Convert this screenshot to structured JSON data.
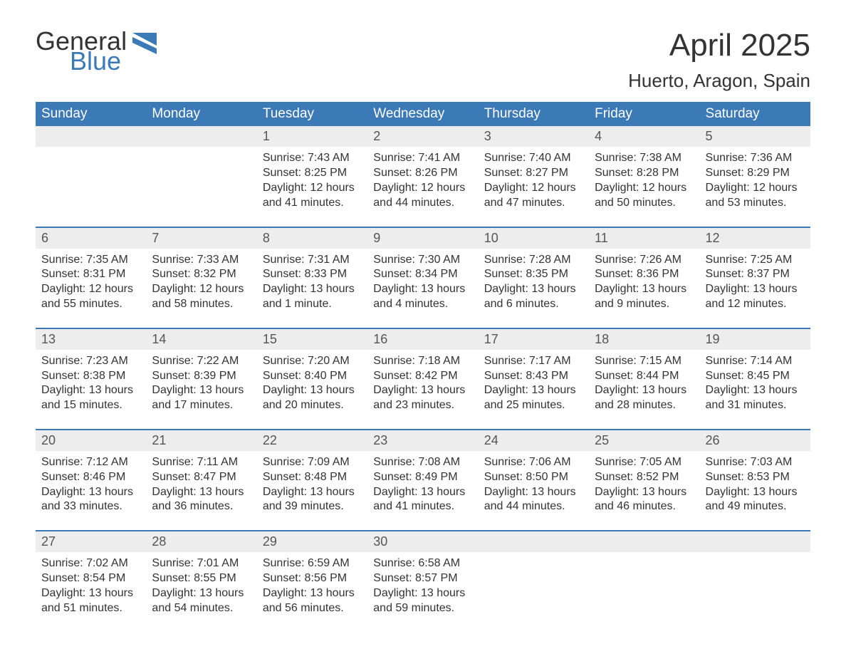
{
  "brand": {
    "line1": "General",
    "line2": "Blue",
    "logo_color": "#3b79b7"
  },
  "title": "April 2025",
  "location": "Huerto, Aragon, Spain",
  "colors": {
    "header_bg": "#3b79b7",
    "header_text": "#ffffff",
    "daynum_bg": "#ededed",
    "text": "#333333",
    "rule": "#3b79b7"
  },
  "fonts": {
    "title_size": 44,
    "location_size": 26,
    "weekday_size": 19,
    "daynum_size": 18,
    "body_size": 16
  },
  "weekdays": [
    "Sunday",
    "Monday",
    "Tuesday",
    "Wednesday",
    "Thursday",
    "Friday",
    "Saturday"
  ],
  "weeks": [
    [
      null,
      null,
      {
        "n": "1",
        "sunrise": "7:43 AM",
        "sunset": "8:25 PM",
        "daylight": "12 hours and 41 minutes."
      },
      {
        "n": "2",
        "sunrise": "7:41 AM",
        "sunset": "8:26 PM",
        "daylight": "12 hours and 44 minutes."
      },
      {
        "n": "3",
        "sunrise": "7:40 AM",
        "sunset": "8:27 PM",
        "daylight": "12 hours and 47 minutes."
      },
      {
        "n": "4",
        "sunrise": "7:38 AM",
        "sunset": "8:28 PM",
        "daylight": "12 hours and 50 minutes."
      },
      {
        "n": "5",
        "sunrise": "7:36 AM",
        "sunset": "8:29 PM",
        "daylight": "12 hours and 53 minutes."
      }
    ],
    [
      {
        "n": "6",
        "sunrise": "7:35 AM",
        "sunset": "8:31 PM",
        "daylight": "12 hours and 55 minutes."
      },
      {
        "n": "7",
        "sunrise": "7:33 AM",
        "sunset": "8:32 PM",
        "daylight": "12 hours and 58 minutes."
      },
      {
        "n": "8",
        "sunrise": "7:31 AM",
        "sunset": "8:33 PM",
        "daylight": "13 hours and 1 minute."
      },
      {
        "n": "9",
        "sunrise": "7:30 AM",
        "sunset": "8:34 PM",
        "daylight": "13 hours and 4 minutes."
      },
      {
        "n": "10",
        "sunrise": "7:28 AM",
        "sunset": "8:35 PM",
        "daylight": "13 hours and 6 minutes."
      },
      {
        "n": "11",
        "sunrise": "7:26 AM",
        "sunset": "8:36 PM",
        "daylight": "13 hours and 9 minutes."
      },
      {
        "n": "12",
        "sunrise": "7:25 AM",
        "sunset": "8:37 PM",
        "daylight": "13 hours and 12 minutes."
      }
    ],
    [
      {
        "n": "13",
        "sunrise": "7:23 AM",
        "sunset": "8:38 PM",
        "daylight": "13 hours and 15 minutes."
      },
      {
        "n": "14",
        "sunrise": "7:22 AM",
        "sunset": "8:39 PM",
        "daylight": "13 hours and 17 minutes."
      },
      {
        "n": "15",
        "sunrise": "7:20 AM",
        "sunset": "8:40 PM",
        "daylight": "13 hours and 20 minutes."
      },
      {
        "n": "16",
        "sunrise": "7:18 AM",
        "sunset": "8:42 PM",
        "daylight": "13 hours and 23 minutes."
      },
      {
        "n": "17",
        "sunrise": "7:17 AM",
        "sunset": "8:43 PM",
        "daylight": "13 hours and 25 minutes."
      },
      {
        "n": "18",
        "sunrise": "7:15 AM",
        "sunset": "8:44 PM",
        "daylight": "13 hours and 28 minutes."
      },
      {
        "n": "19",
        "sunrise": "7:14 AM",
        "sunset": "8:45 PM",
        "daylight": "13 hours and 31 minutes."
      }
    ],
    [
      {
        "n": "20",
        "sunrise": "7:12 AM",
        "sunset": "8:46 PM",
        "daylight": "13 hours and 33 minutes."
      },
      {
        "n": "21",
        "sunrise": "7:11 AM",
        "sunset": "8:47 PM",
        "daylight": "13 hours and 36 minutes."
      },
      {
        "n": "22",
        "sunrise": "7:09 AM",
        "sunset": "8:48 PM",
        "daylight": "13 hours and 39 minutes."
      },
      {
        "n": "23",
        "sunrise": "7:08 AM",
        "sunset": "8:49 PM",
        "daylight": "13 hours and 41 minutes."
      },
      {
        "n": "24",
        "sunrise": "7:06 AM",
        "sunset": "8:50 PM",
        "daylight": "13 hours and 44 minutes."
      },
      {
        "n": "25",
        "sunrise": "7:05 AM",
        "sunset": "8:52 PM",
        "daylight": "13 hours and 46 minutes."
      },
      {
        "n": "26",
        "sunrise": "7:03 AM",
        "sunset": "8:53 PM",
        "daylight": "13 hours and 49 minutes."
      }
    ],
    [
      {
        "n": "27",
        "sunrise": "7:02 AM",
        "sunset": "8:54 PM",
        "daylight": "13 hours and 51 minutes."
      },
      {
        "n": "28",
        "sunrise": "7:01 AM",
        "sunset": "8:55 PM",
        "daylight": "13 hours and 54 minutes."
      },
      {
        "n": "29",
        "sunrise": "6:59 AM",
        "sunset": "8:56 PM",
        "daylight": "13 hours and 56 minutes."
      },
      {
        "n": "30",
        "sunrise": "6:58 AM",
        "sunset": "8:57 PM",
        "daylight": "13 hours and 59 minutes."
      },
      null,
      null,
      null
    ]
  ],
  "labels": {
    "sunrise": "Sunrise:",
    "sunset": "Sunset:",
    "daylight": "Daylight:"
  }
}
